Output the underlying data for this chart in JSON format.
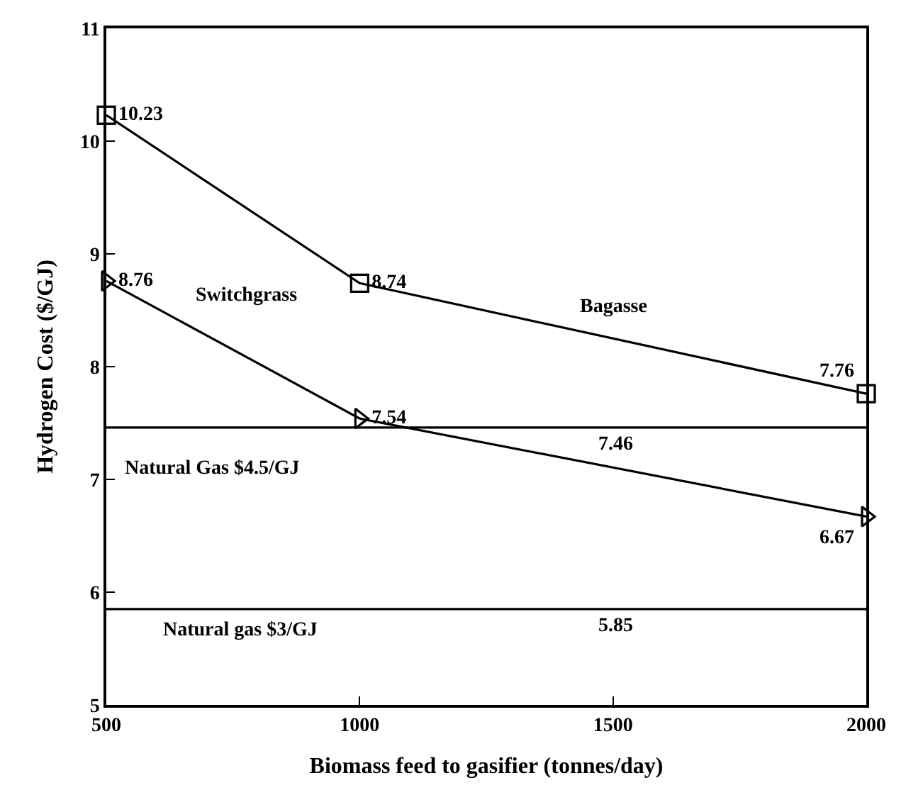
{
  "chart_data": {
    "type": "line",
    "xlabel": "Biomass feed to gasifier (tonnes/day)",
    "ylabel": "Hydrogen Cost ($/GJ)",
    "x": [
      500,
      1000,
      2000
    ],
    "series": [
      {
        "name": "Bagasse",
        "color": "#000000",
        "values": [
          10.23,
          8.74,
          7.76
        ],
        "marker": "square"
      },
      {
        "name": "Switchgrass",
        "color": "#000000",
        "values": [
          8.76,
          7.54,
          6.67
        ],
        "marker": "triangle"
      }
    ],
    "xlim": [
      500,
      2000
    ],
    "xticks": [
      500,
      1000,
      1500,
      2000
    ],
    "ylim": [
      5,
      11
    ],
    "yticks": [
      5,
      6,
      7,
      8,
      9,
      10,
      11
    ],
    "ref_lines": [
      {
        "axis": "y",
        "value": 7.46,
        "label": "7.46",
        "color": "#000000"
      },
      {
        "axis": "y",
        "value": 5.85,
        "label": "5.85",
        "color": "#000000"
      }
    ],
    "annotations": [
      "Natural Gas $4.5/GJ",
      "Natural gas $3/GJ"
    ],
    "data_labels": true,
    "line_style": "solid"
  }
}
